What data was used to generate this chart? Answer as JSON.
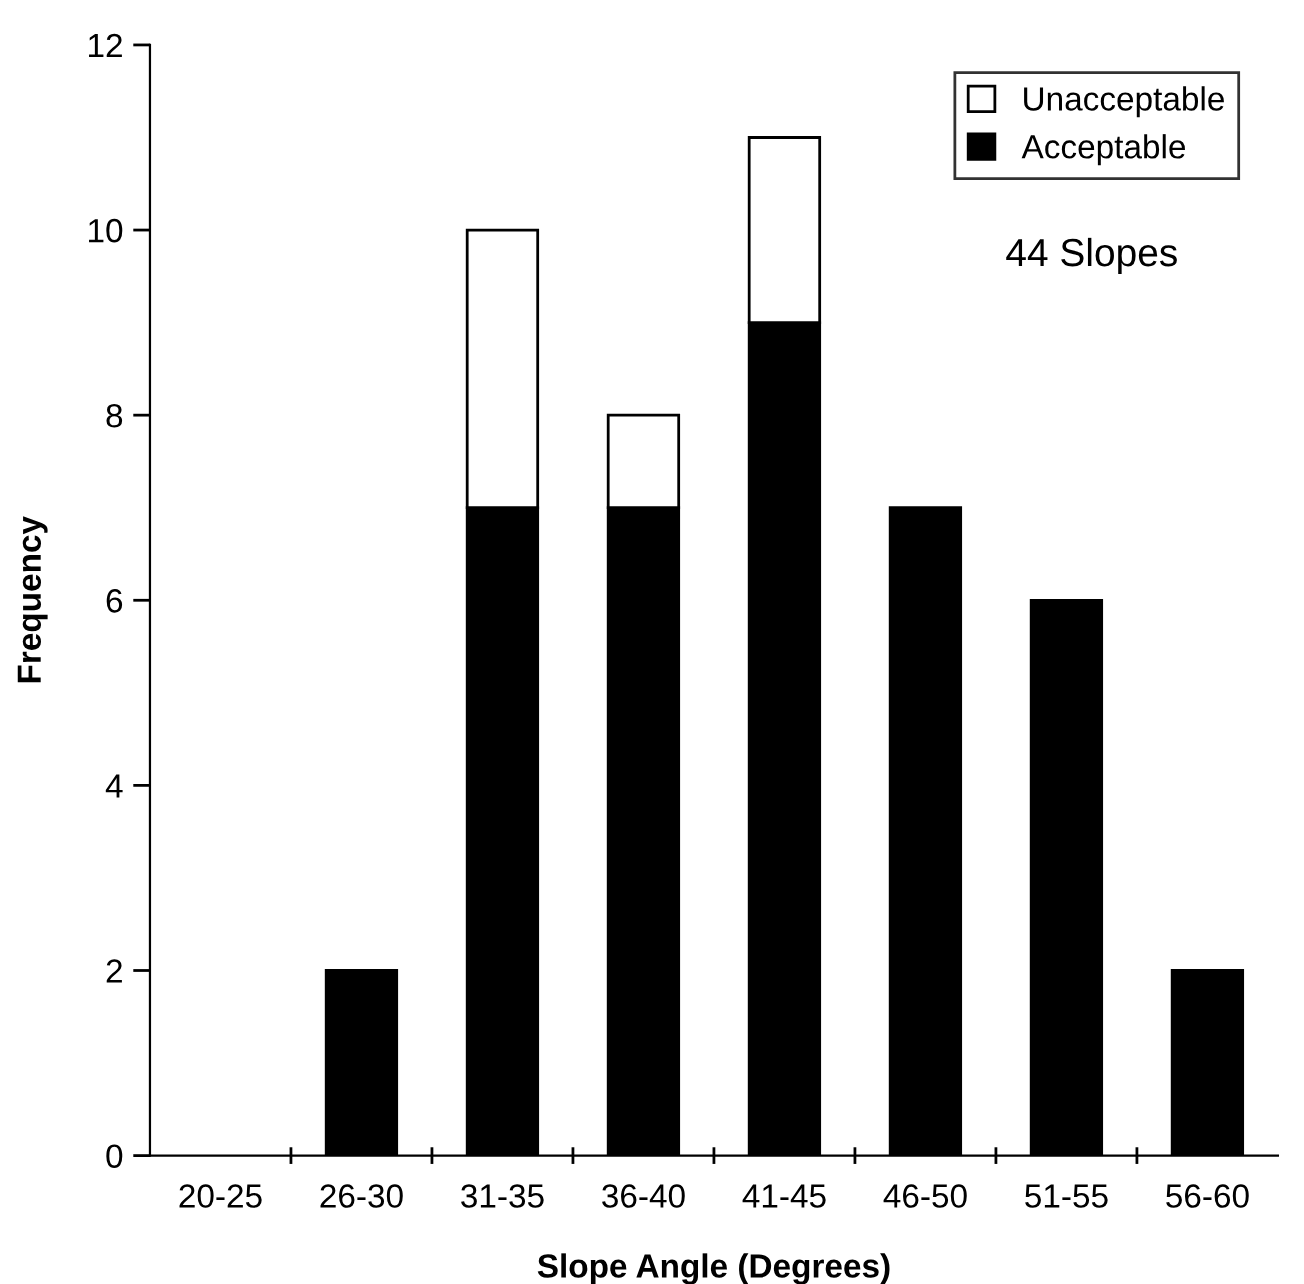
{
  "chart_data": {
    "type": "bar",
    "stacked": true,
    "xlabel": "Slope Angle (Degrees)",
    "ylabel": "Frequency",
    "categories": [
      "20-25",
      "26-30",
      "31-35",
      "36-40",
      "41-45",
      "46-50",
      "51-55",
      "56-60"
    ],
    "series": [
      {
        "name": "Acceptable",
        "color": "#000000",
        "values": [
          0,
          2,
          7,
          7,
          9,
          7,
          6,
          2
        ]
      },
      {
        "name": "Unacceptable",
        "color": "#ffffff",
        "values": [
          0,
          0,
          3,
          1,
          2,
          0,
          0,
          0
        ]
      }
    ],
    "ylim": [
      0,
      12
    ],
    "yticks": [
      0,
      2,
      4,
      6,
      8,
      10,
      12
    ],
    "grid": false,
    "legend": "top right",
    "annotations": [
      "44 Slopes"
    ]
  }
}
